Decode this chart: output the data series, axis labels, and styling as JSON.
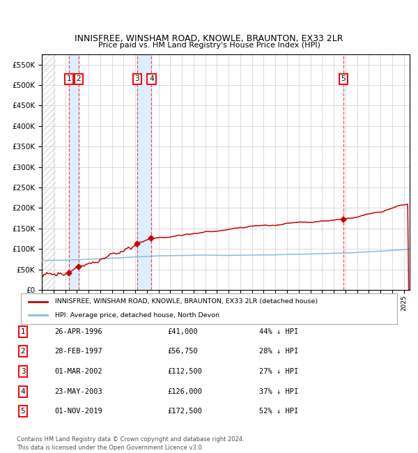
{
  "title": "INNISFREE, WINSHAM ROAD, KNOWLE, BRAUNTON, EX33 2LR",
  "subtitle": "Price paid vs. HM Land Registry's House Price Index (HPI)",
  "transactions": [
    {
      "num": 1,
      "date": "26-APR-1996",
      "year": 1996.32,
      "price": 41000,
      "pct": "44% ↓ HPI"
    },
    {
      "num": 2,
      "date": "28-FEB-1997",
      "year": 1997.16,
      "price": 56750,
      "pct": "28% ↓ HPI"
    },
    {
      "num": 3,
      "date": "01-MAR-2002",
      "year": 2002.17,
      "price": 112500,
      "pct": "27% ↓ HPI"
    },
    {
      "num": 4,
      "date": "23-MAY-2003",
      "year": 2003.39,
      "price": 126000,
      "pct": "37% ↓ HPI"
    },
    {
      "num": 5,
      "date": "01-NOV-2019",
      "year": 2019.83,
      "price": 172500,
      "pct": "52% ↓ HPI"
    }
  ],
  "legend_label_red": "INNISFREE, WINSHAM ROAD, KNOWLE, BRAUNTON, EX33 2LR (detached house)",
  "legend_label_blue": "HPI: Average price, detached house, North Devon",
  "footnote1": "Contains HM Land Registry data © Crown copyright and database right 2024.",
  "footnote2": "This data is licensed under the Open Government Licence v3.0.",
  "ylim_max": 575000,
  "xlim_start": 1994.0,
  "xlim_end": 2025.5,
  "grid_color": "#cccccc",
  "red_line_color": "#cc0000",
  "blue_line_color": "#88bbdd",
  "dashed_color": "#ee3333",
  "shade_color": "#ddeeff",
  "hatch_color": "#dddddd"
}
